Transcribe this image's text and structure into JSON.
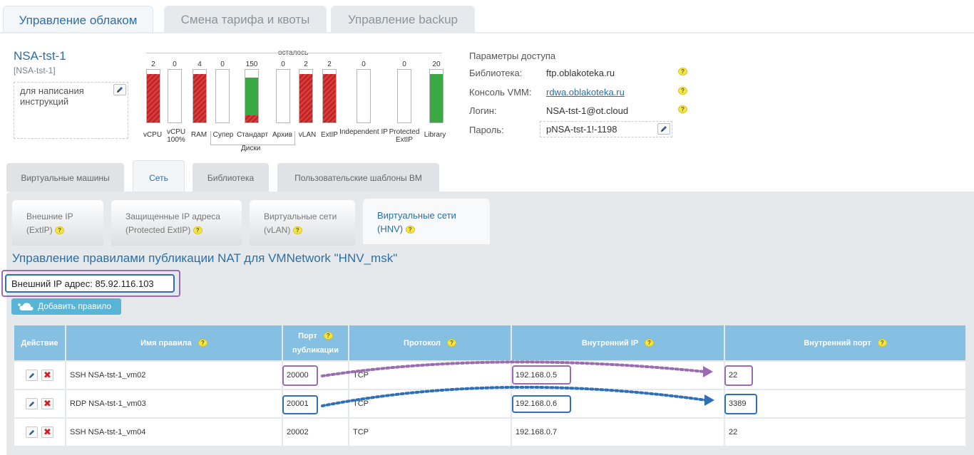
{
  "top_tabs": [
    "Управление облаком",
    "Смена тарифа и квоты",
    "Управление backup"
  ],
  "vm": {
    "title": "NSA-tst-1",
    "subtitle": "[NSA-tst-1]",
    "note_placeholder": "для написания инструкций"
  },
  "quota": {
    "caption": "осталось",
    "disk_group_label": "Диски",
    "items": [
      {
        "label": "vCPU",
        "value": "2",
        "fill": 0.92,
        "style": "red"
      },
      {
        "label": "vCPU 100%",
        "value": "0",
        "fill": 0,
        "style": "none"
      },
      {
        "label": "RAM",
        "value": "4",
        "fill": 0.92,
        "style": "red"
      },
      {
        "label": "Супер",
        "value": "0",
        "fill": 0,
        "style": "none"
      },
      {
        "label": "Стандарт",
        "value": "150",
        "fill": 0.85,
        "style": "green-red"
      },
      {
        "label": "Архив",
        "value": "0",
        "fill": 0,
        "style": "none"
      },
      {
        "label": "vLAN",
        "value": "2",
        "fill": 0.92,
        "style": "red"
      },
      {
        "label": "ExtIP",
        "value": "2",
        "fill": 0.92,
        "style": "red"
      },
      {
        "label": "Independent IP",
        "value": "0",
        "fill": 0,
        "style": "none"
      },
      {
        "label": "Protected ExtIP",
        "value": "0",
        "fill": 0,
        "style": "none"
      },
      {
        "label": "Library",
        "value": "20",
        "fill": 0.92,
        "style": "green"
      }
    ]
  },
  "access": {
    "title": "Параметры доступа",
    "library_label": "Библиотека:",
    "library_value": "ftp.oblakoteka.ru",
    "vmm_label": "Консоль VMM:",
    "vmm_value": "rdwa.oblakoteka.ru",
    "login_label": "Логин:",
    "login_value": "NSA-tst-1@ot.cloud",
    "password_label": "Пароль:",
    "password_value": "pNSA-tst-1!-1198"
  },
  "main_tabs": [
    "Виртуальные машины",
    "Сеть",
    "Библиотека",
    "Пользовательские шаблоны ВМ"
  ],
  "sub_tabs": [
    {
      "line1": "Внешние IP",
      "line2": "(ExtIP)"
    },
    {
      "line1": "Защищенные IP адреса",
      "line2": "(Protected ExtIP)"
    },
    {
      "line1": "Виртуальные сети",
      "line2": "(vLAN)"
    },
    {
      "line1": "Виртуальные сети",
      "line2": "(HNV)"
    }
  ],
  "content": {
    "title": "Управление правилами публикации NAT для VMNetwork \"HNV_msk\"",
    "external_ip": "Внешний IP адрес: 85.92.116.103",
    "add_rule_label": "Добавить правило"
  },
  "table": {
    "headers": {
      "action": "Действие",
      "rule_name": "Имя правила",
      "pub_port_line1": "Порт",
      "pub_port_line2": "публикации",
      "protocol": "Протокол",
      "internal_ip": "Внутренний IP",
      "internal_port": "Внутренний порт"
    },
    "rows": [
      {
        "name": "SSH NSA-tst-1_vm02",
        "port": "20000",
        "protocol": "TCP",
        "ip": "192.168.0.5",
        "int_port": "22"
      },
      {
        "name": "RDP NSA-tst-1_vm03",
        "port": "20001",
        "protocol": "TCP",
        "ip": "192.168.0.6",
        "int_port": "3389"
      },
      {
        "name": "SSH NSA-tst-1_vm04",
        "port": "20002",
        "protocol": "TCP",
        "ip": "192.168.0.7",
        "int_port": "22"
      }
    ]
  },
  "colors": {
    "accent": "#2a6fa8",
    "highlight_purple": "#9a6bb0",
    "highlight_blue": "#2e6fb6",
    "table_header": "#85bfe1"
  }
}
